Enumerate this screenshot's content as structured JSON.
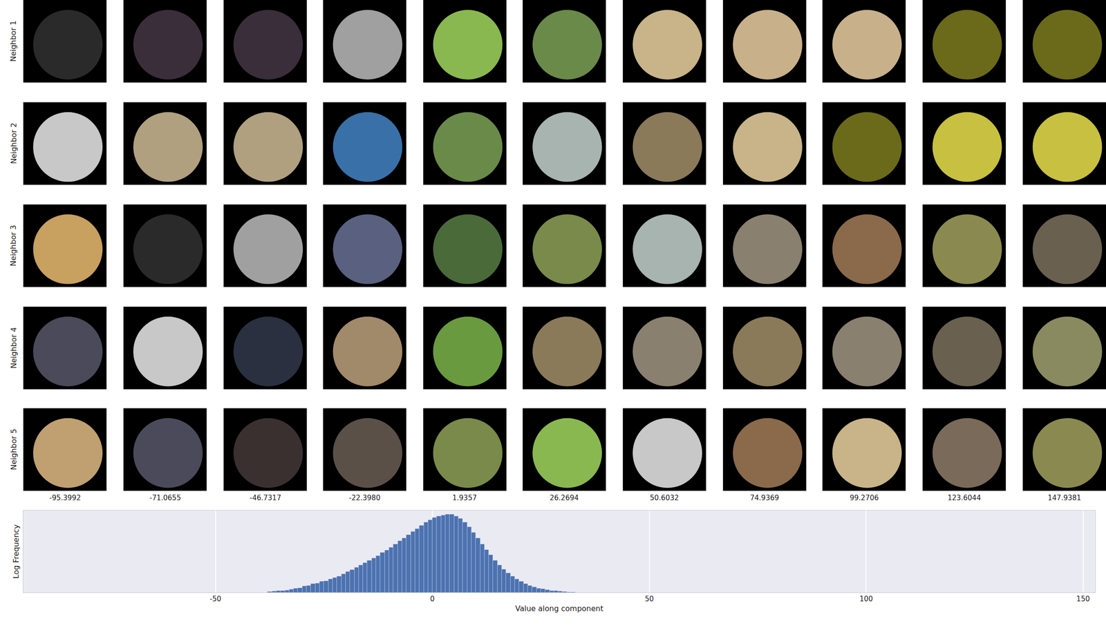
{
  "chart_data": {
    "type": "histogram",
    "x_label": "Value along component",
    "y_label": "Log Frequency",
    "bins": [
      -38,
      -37,
      -36,
      -35,
      -34,
      -33,
      -32,
      -31,
      -30,
      -29,
      -28,
      -27,
      -26,
      -25,
      -24,
      -23,
      -22,
      -21,
      -20,
      -19,
      -18,
      -17,
      -16,
      -15,
      -14,
      -13,
      -12,
      -11,
      -10,
      -9,
      -8,
      -7,
      -6,
      -5,
      -4,
      -3,
      -2,
      -1,
      0,
      1,
      2,
      3,
      4,
      5,
      6,
      7,
      8,
      9,
      10,
      11,
      12,
      13,
      14,
      15,
      16,
      17,
      18,
      19,
      20,
      21,
      22,
      23,
      24,
      25,
      26,
      27,
      28,
      29,
      30,
      31,
      32,
      33
    ],
    "values": [
      0.01,
      0.015,
      0.02,
      0.025,
      0.03,
      0.04,
      0.05,
      0.06,
      0.08,
      0.09,
      0.11,
      0.12,
      0.14,
      0.15,
      0.17,
      0.19,
      0.21,
      0.24,
      0.27,
      0.29,
      0.32,
      0.35,
      0.38,
      0.41,
      0.44,
      0.47,
      0.51,
      0.54,
      0.58,
      0.62,
      0.66,
      0.7,
      0.74,
      0.78,
      0.82,
      0.86,
      0.9,
      0.93,
      0.96,
      0.98,
      0.99,
      1.0,
      1.0,
      0.98,
      0.95,
      0.9,
      0.84,
      0.77,
      0.7,
      0.62,
      0.55,
      0.48,
      0.41,
      0.35,
      0.3,
      0.25,
      0.21,
      0.17,
      0.14,
      0.11,
      0.09,
      0.07,
      0.055,
      0.045,
      0.035,
      0.025,
      0.02,
      0.015,
      0.01,
      0.007,
      0.004
    ],
    "color": "#4c72b0",
    "xlim": [
      -94.3,
      152.8
    ],
    "xticks": [
      -50,
      0,
      50,
      100,
      150
    ],
    "ylim": [
      0,
      1.05
    ],
    "yticks": [],
    "grid": true,
    "tick_labels": "x"
  },
  "patch_grid": {
    "row_labels": [
      "Neighbor 1",
      "Neighbor 2",
      "Neighbor 3",
      "Neighbor 4",
      "Neighbor 5"
    ],
    "column_labels": [
      "-95.3992",
      "-71.0655",
      "-46.7317",
      "-22.3980",
      "1.9357",
      "26.2694",
      "50.6032",
      "74.9369",
      "99.2706",
      "123.6044",
      "147.9381"
    ],
    "colors": [
      [
        "#2a2a2a",
        "#3a2e3a",
        "#3a2e3a",
        "#a0a0a0",
        "#8ab850",
        "#6a8a4a",
        "#c8b488",
        "#c8b08a",
        "#c8b08a",
        "#6a6a1a",
        "#6a6a1a"
      ],
      [
        "#c8c8c8",
        "#b0a080",
        "#b0a080",
        "#3a70a8",
        "#6a8a4a",
        "#a8b4b0",
        "#8a7a5a",
        "#c8b488",
        "#6a6a1a",
        "#c8c040",
        "#c8c040"
      ],
      [
        "#c8a060",
        "#2a2a2a",
        "#a0a0a0",
        "#5a6080",
        "#4a6a3a",
        "#7a8a4a",
        "#a8b4b0",
        "#8a8070",
        "#8a6a4a",
        "#8a8a50",
        "#6a6050"
      ],
      [
        "#4a4a5a",
        "#c8c8c8",
        "#2a3040",
        "#a08a6a",
        "#6a9a40",
        "#8a7a5a",
        "#8a8070",
        "#8a7a5a",
        "#8a8070",
        "#6a6050",
        "#8a8a60"
      ],
      [
        "#c0a070",
        "#4a4a5a",
        "#3a3030",
        "#5a5048",
        "#7a8a4a",
        "#8ab850",
        "#c8c8c8",
        "#8a6a4a",
        "#c8b488",
        "#7a6a5a",
        "#8a8a50"
      ]
    ]
  }
}
